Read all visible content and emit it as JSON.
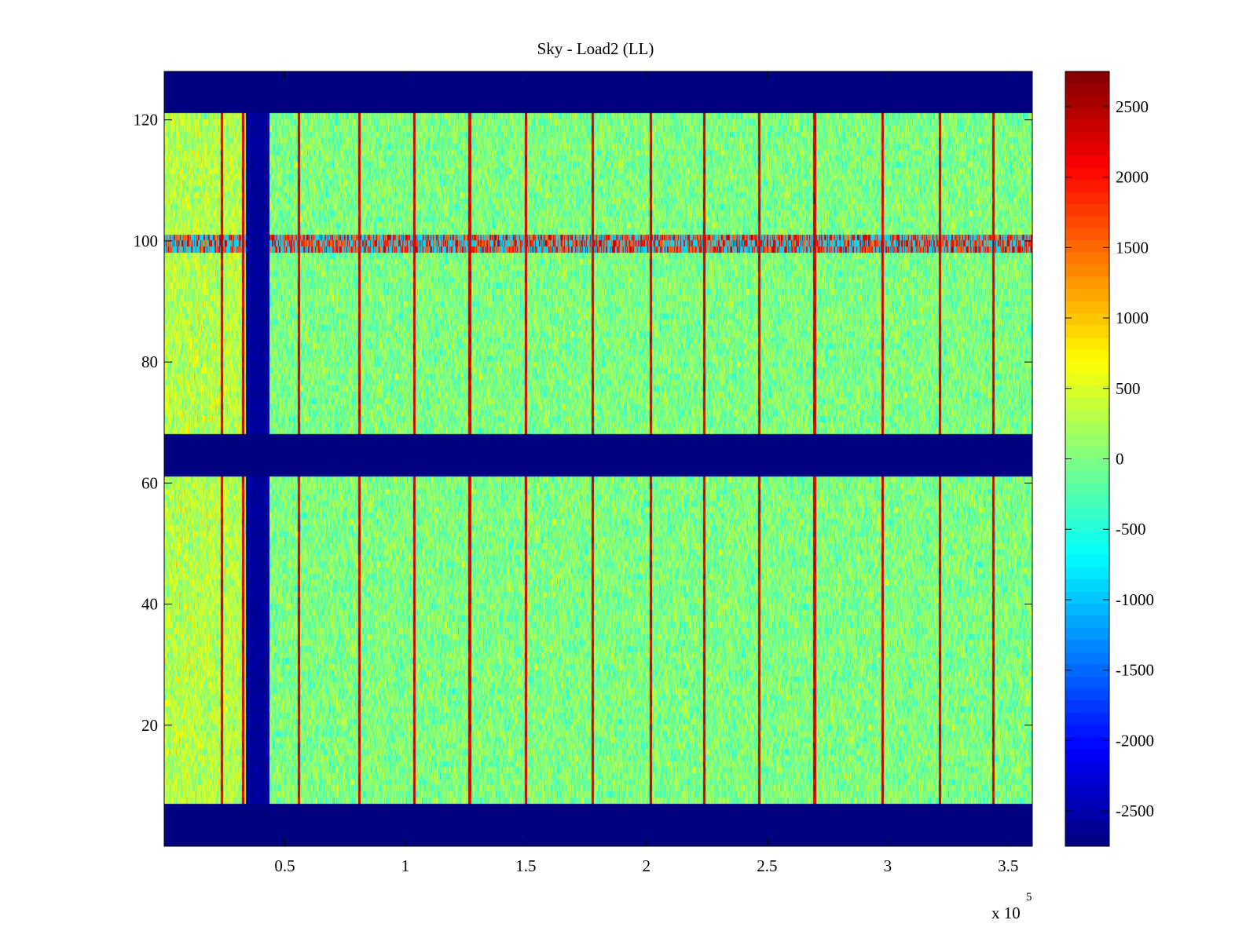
{
  "chart_data": {
    "type": "heatmap",
    "title": "Sky - Load2 (LL)",
    "xlabel": "",
    "ylabel": "",
    "x_exponent_label": "x 10",
    "x_exponent_power": "5",
    "xlim": [
      0,
      360000
    ],
    "ylim": [
      0,
      128
    ],
    "xticks": [
      50000,
      100000,
      150000,
      200000,
      250000,
      300000,
      350000
    ],
    "xtick_labels": [
      "0.5",
      "1",
      "1.5",
      "2",
      "2.5",
      "3",
      "3.5"
    ],
    "yticks": [
      20,
      40,
      60,
      80,
      100,
      120
    ],
    "ytick_labels": [
      "20",
      "40",
      "60",
      "80",
      "100",
      "120"
    ],
    "colormap": "jet",
    "clim": [
      -2750,
      2750
    ],
    "colorbar_ticks": [
      2500,
      2000,
      1500,
      1000,
      500,
      0,
      -500,
      -1000,
      -1500,
      -2000,
      -2500
    ],
    "colorbar_tick_labels": [
      "2500",
      "2000",
      "1500",
      "1000",
      "500",
      "0",
      "-500",
      "-1000",
      "-1500",
      "-2000",
      "-2500"
    ],
    "background_value": -2750,
    "typical_value": 0,
    "noise_amplitude": 400,
    "masked_channel_bands": [
      {
        "ymin": 0,
        "ymax": 7.5
      },
      {
        "ymin": 61.5,
        "ymax": 68.5
      },
      {
        "ymin": 121.5,
        "ymax": 128
      }
    ],
    "masked_time_band": {
      "xmin": 34000,
      "xmax": 44000,
      "value": -2700
    },
    "hot_channel_band": {
      "ymin": 98.5,
      "ymax": 101.5,
      "value": 2300,
      "alt_value": -900
    },
    "spike_times_x": [
      24000,
      33000,
      56000,
      81000,
      104000,
      127000,
      150000,
      178000,
      202000,
      224000,
      247000,
      270000,
      298000,
      322000,
      344000
    ],
    "spike_value": 2600
  }
}
